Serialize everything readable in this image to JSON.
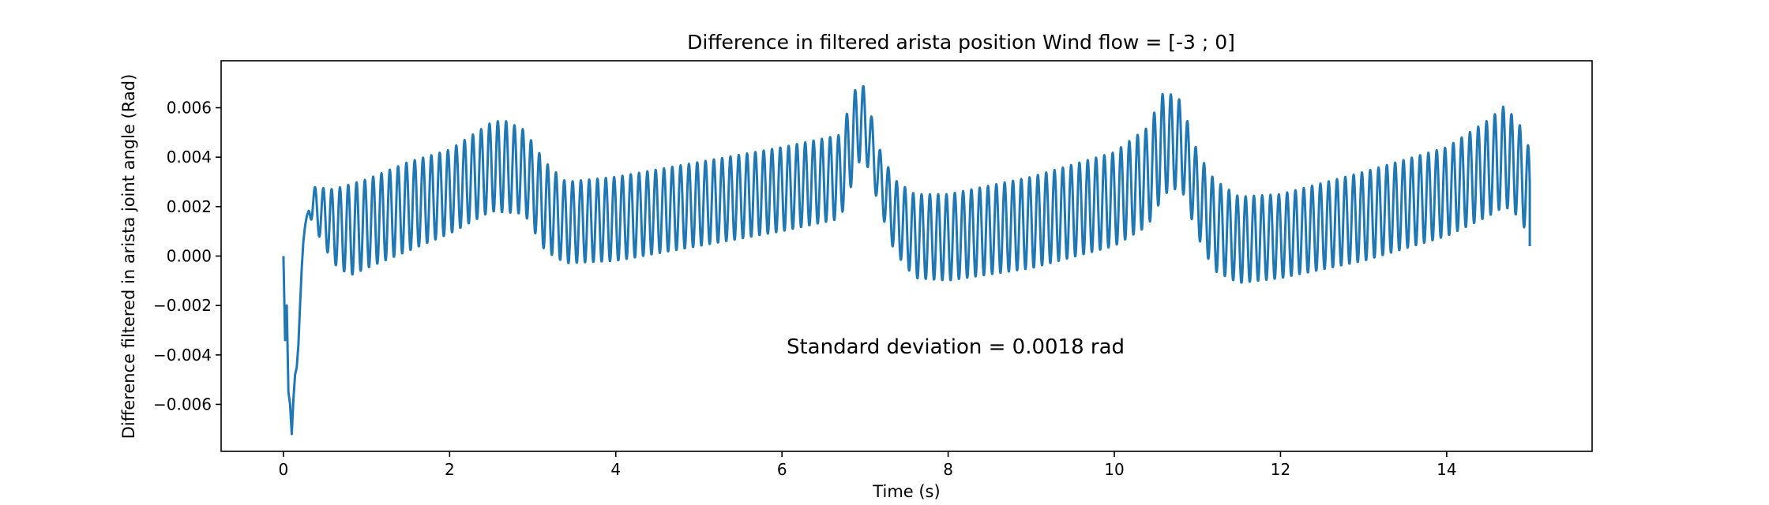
{
  "chart_data": {
    "type": "line",
    "title": "Difference in filtered arista position Wind flow = [-3 ; 0]",
    "xlabel": "Time (s)",
    "ylabel": "Difference filtered in arista joint angle (Rad)",
    "annotation": "Standard deviation = 0.0018 rad",
    "xlim": [
      -0.75,
      15.75
    ],
    "ylim": [
      -0.0079,
      0.0079
    ],
    "x_ticks": [
      0,
      2,
      4,
      6,
      8,
      10,
      12,
      14
    ],
    "x_tick_labels": [
      "0",
      "2",
      "4",
      "6",
      "8",
      "10",
      "12",
      "14"
    ],
    "y_ticks": [
      0.006,
      0.004,
      0.002,
      0.0,
      -0.002,
      -0.004,
      -0.006
    ],
    "y_tick_labels": [
      "0.006",
      "0.004",
      "0.002",
      "0.000",
      "−0.002",
      "−0.004",
      "−0.006"
    ],
    "grid": false,
    "series": [
      {
        "color": "#1f77b4",
        "oscillation_period": 0.1,
        "x_start": 0.0,
        "x_end": 15.0,
        "initial_transient": {
          "x": [
            0.0,
            0.02,
            0.04,
            0.06,
            0.08,
            0.1,
            0.12,
            0.14,
            0.16,
            0.18,
            0.2,
            0.22,
            0.24,
            0.26,
            0.28,
            0.3
          ],
          "y": [
            0.0,
            -0.0034,
            -0.002,
            -0.0055,
            -0.006,
            -0.0072,
            -0.0058,
            -0.0048,
            -0.0045,
            -0.0036,
            -0.002,
            -0.0005,
            0.0006,
            0.0012,
            0.0016,
            0.0018
          ]
        },
        "upper_envelope": {
          "x": [
            0.35,
            0.6,
            1.0,
            1.5,
            2.0,
            2.5,
            2.65,
            2.9,
            3.15,
            3.4,
            4.0,
            5.0,
            6.0,
            6.7,
            6.85,
            6.95,
            7.05,
            7.15,
            7.35,
            7.6,
            8.0,
            9.0,
            10.0,
            10.4,
            10.6,
            10.8,
            11.0,
            11.2,
            11.5,
            12.0,
            13.0,
            14.0,
            14.5,
            14.7,
            14.9,
            15.0
          ],
          "y": [
            0.0028,
            0.0027,
            0.0031,
            0.0038,
            0.0043,
            0.0054,
            0.0055,
            0.0051,
            0.0038,
            0.003,
            0.0032,
            0.0038,
            0.0044,
            0.0049,
            0.0065,
            0.0072,
            0.0061,
            0.0045,
            0.0031,
            0.0025,
            0.0025,
            0.0032,
            0.0042,
            0.0052,
            0.0067,
            0.0063,
            0.0042,
            0.0031,
            0.0024,
            0.0025,
            0.0034,
            0.0044,
            0.0055,
            0.0061,
            0.0052,
            0.0043
          ]
        },
        "lower_envelope": {
          "x": [
            0.35,
            0.6,
            0.8,
            1.0,
            1.5,
            2.0,
            2.5,
            2.9,
            3.15,
            3.4,
            4.0,
            5.0,
            6.0,
            6.7,
            6.85,
            6.95,
            7.05,
            7.15,
            7.35,
            7.6,
            8.0,
            9.0,
            10.0,
            10.4,
            10.6,
            10.8,
            11.0,
            11.2,
            11.5,
            12.0,
            13.0,
            14.0,
            14.5,
            14.7,
            14.9,
            15.0
          ],
          "y": [
            0.0013,
            -0.0003,
            -0.0008,
            -0.0005,
            0.0002,
            0.0009,
            0.0018,
            0.0017,
            0.0002,
            -0.0003,
            -0.0002,
            0.0004,
            0.001,
            0.0015,
            0.003,
            0.004,
            0.0035,
            0.0022,
            0.0002,
            -0.0009,
            -0.001,
            -0.0005,
            0.0004,
            0.0012,
            0.0025,
            0.0028,
            0.0008,
            -0.0006,
            -0.0011,
            -0.0009,
            -0.0002,
            0.0008,
            0.0016,
            0.002,
            0.0015,
            0.0004
          ]
        }
      }
    ]
  }
}
